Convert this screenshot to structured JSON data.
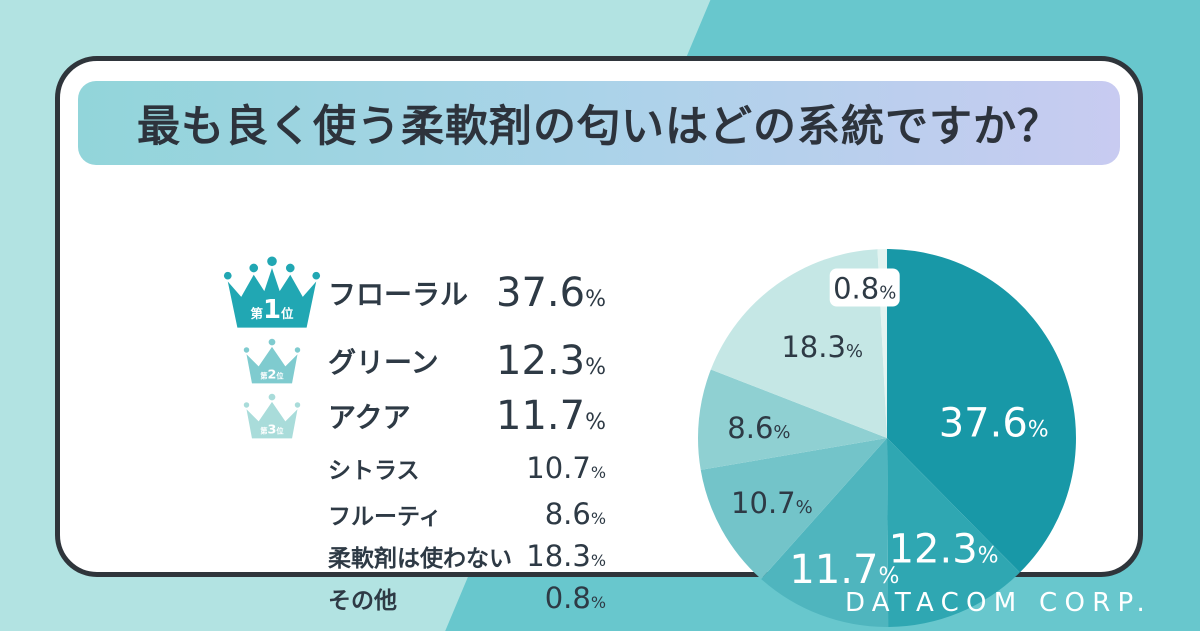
{
  "title": {
    "text": "最も良く使う柔軟剤の匂いはどの系統ですか？"
  },
  "brand": {
    "name": "DATACOM CORP."
  },
  "percent_symbol": "%",
  "colors": {
    "background_mint": "#b2e3e2",
    "background_teal": "#68c7cd",
    "card_border": "#2f353b",
    "banner_gradient_start": "#92d5da",
    "banner_gradient_end": "#c8cbf1",
    "text_dark": "#2e3a45"
  },
  "ranking": {
    "rank_prefix": "第",
    "rank_suffix": "位",
    "items": [
      {
        "rank": 1,
        "rank_label": "第1位",
        "label": "フローラル",
        "value": "37.6",
        "crown_color": "#21a7b3"
      },
      {
        "rank": 2,
        "rank_label": "第2位",
        "label": "グリーン",
        "value": "12.3",
        "crown_color": "#7fcbcf"
      },
      {
        "rank": 3,
        "rank_label": "第3位",
        "label": "アクア",
        "value": "11.7",
        "crown_color": "#a9dcda"
      },
      {
        "label": "シトラス",
        "value": "10.7"
      },
      {
        "label": "フルーティ",
        "value": "8.6"
      },
      {
        "label": "柔軟剤は使わない",
        "value": "18.3"
      },
      {
        "label": "その他",
        "value": "0.8"
      }
    ]
  },
  "chart_data": {
    "type": "pie",
    "title": "最も良く使う柔軟剤の匂いはどの系統ですか？",
    "unit": "%",
    "start_angle_deg": 0,
    "direction": "clockwise",
    "legend_position": "left-list",
    "categories": [
      "フローラル",
      "グリーン",
      "アクア",
      "シトラス",
      "フルーティ",
      "柔軟剤は使わない",
      "その他"
    ],
    "values": [
      37.6,
      12.3,
      11.7,
      10.7,
      8.6,
      18.3,
      0.8
    ],
    "colors": [
      "#1898a7",
      "#2fa7b2",
      "#4fb5be",
      "#73c4c9",
      "#8fd0d2",
      "#c5e7e5",
      "#e3f4f1"
    ],
    "label_colors": [
      "#ffffff",
      "#ffffff",
      "#ffffff",
      "#2e3a45",
      "#2e3a45",
      "#2e3a45",
      "#2e3a45"
    ]
  }
}
